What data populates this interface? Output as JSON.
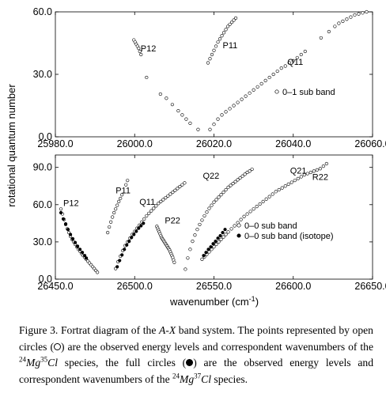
{
  "shared": {
    "ylabel": "rotational quantum number",
    "xlabel_prefix": "wavenumber (cm",
    "xlabel_sup": "-1",
    "xlabel_suffix": ")"
  },
  "chart_data": [
    {
      "type": "scatter",
      "xlim": [
        25980,
        26060
      ],
      "ylim": [
        0,
        60
      ],
      "x_ticks": [
        25980,
        26000,
        26020,
        26040,
        26060
      ],
      "x_tick_labels": [
        "25980.0",
        "26000.0",
        "26020.0",
        "26040.0",
        "26060.0"
      ],
      "y_ticks": [
        0,
        30,
        60
      ],
      "y_tick_labels": [
        "0.0",
        "30.0",
        "60.0"
      ],
      "grid": false,
      "legend_position": "right",
      "legend": [
        {
          "label": "0–1 sub band",
          "marker": "open-circle"
        }
      ],
      "annotations": [
        {
          "text": "P12",
          "x": 26001.5,
          "y": 41
        },
        {
          "text": "P11",
          "x": 26022.2,
          "y": 42.5
        },
        {
          "text": "Q11",
          "x": 26038.5,
          "y": 34.5
        }
      ],
      "series": [
        {
          "name": "P12",
          "marker": "open-circle",
          "x": [
            25999.8,
            26000.1,
            26000.4,
            26000.7,
            26001.0,
            26001.3,
            26001.6,
            26003.0,
            26006.5,
            26008.0,
            26009.5,
            26011.0,
            26012.0,
            26013.0,
            26014.0,
            26016.0
          ],
          "y": [
            46.5,
            45.5,
            44.5,
            43.5,
            42.5,
            41.0,
            39.5,
            28.5,
            20.5,
            18.5,
            15.5,
            12.5,
            10.5,
            8.5,
            6.5,
            3.5
          ]
        },
        {
          "name": "P11",
          "marker": "open-circle",
          "x": [
            26018.5,
            26019.0,
            26019.5,
            26020.0,
            26020.5,
            26021.0,
            26021.5,
            26022.0,
            26022.5,
            26023.0,
            26023.5,
            26024.0,
            26024.5,
            26025.0,
            26025.5
          ],
          "y": [
            35.5,
            37.5,
            39.5,
            41.5,
            43.5,
            45.5,
            47.0,
            48.5,
            50.0,
            51.5,
            53.0,
            54.0,
            55.0,
            56.0,
            57.0
          ]
        },
        {
          "name": "Q11",
          "marker": "open-circle",
          "x": [
            26019.0,
            26020.0,
            26021.0,
            26022.0,
            26023.0,
            26024.0,
            26025.0,
            26026.0,
            26027.0,
            26028.0,
            26029.0,
            26030.0,
            26031.0,
            26032.0,
            26033.0,
            26034.0,
            26035.0,
            26036.0,
            26037.0,
            26038.0,
            26039.0,
            26040.0,
            26041.0,
            26042.0,
            26043.0,
            26047.0,
            26049.0,
            26050.5,
            26051.5,
            26052.5,
            26053.5,
            26054.5,
            26055.5,
            26056.5,
            26057.5,
            26058.5
          ],
          "y": [
            3.5,
            6.0,
            8.5,
            10.5,
            12.0,
            13.5,
            15.0,
            16.5,
            18.0,
            19.5,
            21.0,
            22.5,
            24.0,
            25.5,
            27.0,
            28.5,
            30.0,
            31.5,
            33.0,
            34.0,
            35.5,
            36.5,
            38.0,
            39.5,
            41.0,
            47.5,
            50.5,
            53.0,
            54.5,
            55.5,
            56.5,
            57.5,
            58.5,
            59.0,
            59.5,
            60.0
          ]
        }
      ]
    },
    {
      "type": "scatter",
      "xlim": [
        26450,
        26650
      ],
      "ylim": [
        0,
        100
      ],
      "x_ticks": [
        26450,
        26500,
        26550,
        26600,
        26650
      ],
      "x_tick_labels": [
        "26450.0",
        "26500.0",
        "26550.0",
        "26600.0",
        "26650.0"
      ],
      "y_ticks": [
        0,
        30,
        60,
        90
      ],
      "y_tick_labels": [
        "0.0",
        "30.0",
        "60.0",
        "90.0"
      ],
      "grid": false,
      "legend_position": "right",
      "legend": [
        {
          "label": "0–0 sub band",
          "marker": "open-circle"
        },
        {
          "label": "0–0 sub band (isotope)",
          "marker": "filled-circle"
        }
      ],
      "annotations": [
        {
          "text": "P12",
          "x": 26455,
          "y": 59
        },
        {
          "text": "P11",
          "x": 26488,
          "y": 69
        },
        {
          "text": "Q11",
          "x": 26503,
          "y": 60
        },
        {
          "text": "P22",
          "x": 26519,
          "y": 45
        },
        {
          "text": "Q22",
          "x": 26543,
          "y": 81
        },
        {
          "text": "Q21",
          "x": 26598,
          "y": 85
        },
        {
          "text": "R22",
          "x": 26612,
          "y": 80
        }
      ],
      "series": [
        {
          "name": "P12",
          "marker": "open-circle",
          "x": [
            26453.5,
            26454.5,
            26455.5,
            26456.5,
            26457.5,
            26458.5,
            26459.5,
            26460.5,
            26461.5,
            26462.5,
            26463.5,
            26464.5,
            26465.5,
            26466.5,
            26467.5,
            26468.5,
            26469.5,
            26470.5,
            26471.5,
            26472.5,
            26473.5,
            26474.5,
            26475.5,
            26476.5
          ],
          "y": [
            56.5,
            52.5,
            48.0,
            44.0,
            40.5,
            37.5,
            34.5,
            32.0,
            30.0,
            28.0,
            26.0,
            24.0,
            22.5,
            20.5,
            19.0,
            17.5,
            16.0,
            14.5,
            13.0,
            11.5,
            10.0,
            8.5,
            7.0,
            5.5
          ]
        },
        {
          "name": "P12 (isotope)",
          "marker": "filled-circle",
          "x": [
            26453.5,
            26455.0,
            26456.5,
            26458.0,
            26459.5,
            26461.0,
            26462.5,
            26464.0,
            26465.5,
            26467.0,
            26468.5,
            26469.5
          ],
          "y": [
            53.5,
            48.5,
            44.5,
            40.0,
            36.0,
            32.5,
            29.5,
            26.5,
            24.0,
            21.5,
            19.0,
            17.0
          ]
        },
        {
          "name": "P11",
          "marker": "open-circle",
          "x": [
            26483.0,
            26484.0,
            26485.0,
            26486.0,
            26487.0,
            26488.0,
            26489.0,
            26490.0,
            26491.0,
            26492.0,
            26494.5,
            26495.5
          ],
          "y": [
            37.5,
            42.0,
            46.0,
            50.0,
            53.5,
            56.5,
            59.5,
            62.5,
            65.0,
            68.0,
            76.0,
            79.5
          ]
        },
        {
          "name": "Q11",
          "marker": "open-circle",
          "x": [
            26488.0,
            26489.5,
            26491.0,
            26492.5,
            26494.0,
            26495.5,
            26497.0,
            26498.5,
            26500.0,
            26501.5,
            26503.0,
            26504.5,
            26506.0,
            26507.5,
            26509.0,
            26510.5,
            26512.0,
            26513.5,
            26515.0,
            26516.5,
            26518.0,
            26519.5,
            26521.0,
            26522.5,
            26524.0,
            26525.5,
            26527.0,
            26528.5,
            26530.0,
            26531.5
          ],
          "y": [
            8.5,
            14.0,
            18.5,
            23.0,
            27.0,
            30.0,
            33.0,
            36.0,
            38.5,
            41.0,
            43.5,
            46.0,
            48.5,
            51.0,
            53.0,
            55.0,
            57.0,
            59.0,
            61.0,
            62.5,
            64.0,
            65.5,
            67.0,
            68.5,
            70.0,
            71.5,
            73.0,
            74.5,
            76.0,
            77.5
          ]
        },
        {
          "name": "Q11 (isotope)",
          "marker": "filled-circle",
          "x": [
            26489.0,
            26490.5,
            26492.0,
            26493.5,
            26495.0,
            26496.5,
            26498.0,
            26499.5,
            26501.0,
            26502.5,
            26504.0,
            26505.5
          ],
          "y": [
            10.0,
            15.0,
            19.5,
            24.0,
            27.5,
            30.5,
            33.5,
            36.0,
            38.5,
            41.0,
            43.0,
            45.0
          ]
        },
        {
          "name": "P22",
          "marker": "open-circle",
          "x": [
            26514.0,
            26514.5,
            26515.0,
            26515.5,
            26516.0,
            26516.5,
            26517.0,
            26517.5,
            26518.0,
            26518.5,
            26519.0,
            26519.5,
            26520.0,
            26520.5,
            26521.0,
            26521.5,
            26522.0,
            26522.5,
            26523.0,
            26523.5,
            26524.0,
            26524.5,
            26525.0
          ],
          "y": [
            42.5,
            41.0,
            39.5,
            38.0,
            36.5,
            35.0,
            33.5,
            32.5,
            31.5,
            30.5,
            29.5,
            28.5,
            27.5,
            26.5,
            25.5,
            24.5,
            23.5,
            22.0,
            20.5,
            19.0,
            17.5,
            15.5,
            13.5
          ]
        },
        {
          "name": "Q22",
          "marker": "open-circle",
          "x": [
            26532.0,
            26533.5,
            26535.0,
            26536.5,
            26538.0,
            26539.5,
            26541.0,
            26542.5,
            26544.0,
            26545.5,
            26547.0,
            26548.5,
            26550.0,
            26551.5,
            26553.0,
            26554.5,
            26556.0,
            26557.5,
            26559.0,
            26560.5,
            26562.0,
            26563.5,
            26565.0,
            26566.5,
            26568.0,
            26569.5,
            26571.0,
            26572.5,
            26574.0
          ],
          "y": [
            8.0,
            17.0,
            24.0,
            30.5,
            35.5,
            40.0,
            44.0,
            47.5,
            51.0,
            54.0,
            57.0,
            59.5,
            62.0,
            64.0,
            66.0,
            68.0,
            70.0,
            72.0,
            74.0,
            75.5,
            77.0,
            78.5,
            80.0,
            81.5,
            83.0,
            84.5,
            86.0,
            87.0,
            88.5
          ]
        },
        {
          "name": "Q21",
          "marker": "open-circle",
          "x": [
            26542.5,
            26544.0,
            26545.5,
            26547.0,
            26548.5,
            26550.0,
            26551.5,
            26553.0,
            26554.5,
            26556.0,
            26557.5,
            26559.0,
            26561.0,
            26563.0,
            26565.0,
            26567.0,
            26569.0,
            26571.0,
            26573.0,
            26575.0,
            26577.0,
            26579.0,
            26581.0,
            26583.0,
            26585.0,
            26587.0,
            26589.0,
            26591.0,
            26593.0,
            26595.0,
            26597.0,
            26599.0,
            26601.0,
            26603.0,
            26605.0,
            26607.0,
            26609.0,
            26611.0,
            26613.0,
            26615.0,
            26617.0,
            26619.0,
            26621.0
          ],
          "y": [
            16.0,
            18.0,
            20.0,
            22.0,
            24.0,
            26.0,
            28.0,
            30.0,
            32.0,
            34.0,
            36.0,
            38.0,
            40.5,
            43.0,
            45.5,
            48.0,
            50.5,
            52.5,
            54.5,
            56.5,
            58.5,
            60.5,
            62.5,
            64.5,
            66.5,
            68.5,
            70.5,
            72.0,
            73.5,
            75.0,
            76.5,
            78.0,
            79.5,
            81.0,
            82.5,
            84.0,
            85.0,
            86.0,
            87.0,
            88.0,
            89.0,
            91.0,
            93.0
          ]
        },
        {
          "name": "Q21 (isotope)",
          "marker": "filled-circle",
          "x": [
            26543.5,
            26545.0,
            26546.5,
            26548.0,
            26549.5,
            26551.0,
            26552.5,
            26554.0,
            26555.5,
            26557.0
          ],
          "y": [
            19.0,
            21.5,
            24.0,
            26.0,
            28.5,
            30.5,
            33.0,
            35.0,
            37.5,
            40.0
          ]
        }
      ]
    }
  ],
  "caption": {
    "figure_label": "Figure 3.",
    "text_1": " Fortrat diagram of the ",
    "band_system": "A-X",
    "text_2": " band system. The points represented by open circles (",
    "text_3": ") are the observed energy levels and correspondent wavenumbers of the ",
    "species_1_mass_mg": "24",
    "species_1_mg": "Mg",
    "species_1_mass_cl": "35",
    "species_1_cl": "Cl",
    "text_4": " species, the full circles (",
    "text_5": ") are the observed energy levels and correspondent wavenumbers of the ",
    "species_2_mass_mg": "24",
    "species_2_mg": "Mg",
    "species_2_mass_cl": "37",
    "species_2_cl": "Cl",
    "text_6": " species."
  }
}
